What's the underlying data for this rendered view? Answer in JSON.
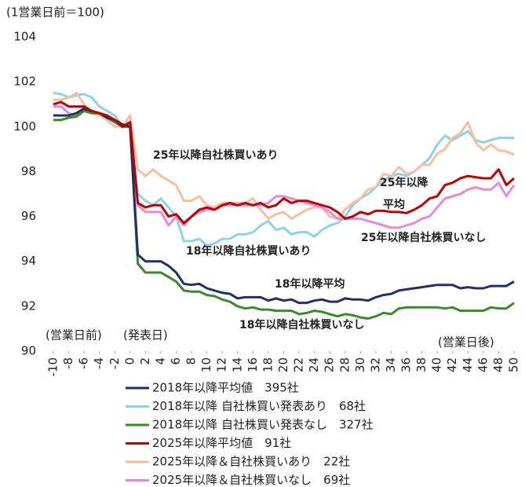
{
  "chart_data": {
    "type": "line",
    "title": "(1営業日前＝100)",
    "x": [
      -10,
      -9,
      -8,
      -7,
      -6,
      -5,
      -4,
      -3,
      -2,
      -1,
      0,
      1,
      2,
      3,
      4,
      5,
      6,
      7,
      8,
      9,
      10,
      11,
      12,
      13,
      14,
      15,
      16,
      17,
      18,
      19,
      20,
      21,
      22,
      23,
      24,
      25,
      26,
      27,
      28,
      29,
      30,
      31,
      32,
      33,
      34,
      35,
      36,
      37,
      38,
      39,
      40,
      41,
      42,
      43,
      44,
      45,
      46,
      47,
      48,
      49,
      50
    ],
    "xlim": [
      -10,
      50
    ],
    "xticks": [
      -10,
      -8,
      -6,
      -4,
      -2,
      0,
      2,
      4,
      6,
      8,
      10,
      12,
      14,
      16,
      18,
      20,
      22,
      24,
      26,
      28,
      30,
      32,
      34,
      36,
      38,
      40,
      42,
      44,
      46,
      48,
      50
    ],
    "ylim": [
      90,
      104
    ],
    "yticks": [
      90,
      92,
      94,
      96,
      98,
      100,
      102,
      104
    ],
    "grid": false,
    "legend": "bottom",
    "series": [
      {
        "name": "2018年以降平均値　395社",
        "color": "#1f2f6b",
        "values": [
          100.5,
          100.5,
          100.5,
          100.6,
          100.8,
          100.7,
          100.6,
          100.4,
          100.3,
          100.1,
          100.0,
          94.3,
          94.0,
          94.0,
          94.0,
          93.8,
          93.5,
          93.0,
          92.95,
          93.0,
          92.8,
          92.7,
          92.6,
          92.55,
          92.35,
          92.4,
          92.4,
          92.4,
          92.25,
          92.35,
          92.25,
          92.3,
          92.15,
          92.15,
          92.25,
          92.3,
          92.2,
          92.2,
          92.35,
          92.3,
          92.3,
          92.25,
          92.4,
          92.5,
          92.55,
          92.7,
          92.75,
          92.8,
          92.85,
          92.9,
          92.95,
          92.95,
          92.95,
          92.8,
          92.85,
          92.8,
          92.8,
          92.9,
          92.9,
          92.9,
          93.1
        ]
      },
      {
        "name": "2018年以降 自社株買い発表あり　68社",
        "color": "#8fd0ec",
        "values": [
          101.5,
          101.45,
          101.3,
          101.4,
          101.45,
          101.3,
          100.9,
          100.7,
          100.5,
          100.0,
          100.0,
          97.0,
          96.7,
          96.5,
          96.8,
          96.4,
          96.0,
          94.9,
          94.9,
          95.0,
          94.7,
          94.8,
          95.0,
          95.0,
          95.2,
          95.2,
          95.3,
          95.6,
          95.8,
          95.4,
          95.5,
          95.2,
          95.3,
          95.3,
          95.1,
          95.4,
          95.6,
          95.7,
          96.0,
          96.5,
          96.8,
          97.0,
          97.3,
          97.6,
          97.8,
          97.9,
          97.8,
          98.0,
          98.3,
          98.6,
          99.2,
          99.6,
          99.4,
          99.6,
          99.8,
          99.4,
          99.3,
          99.4,
          99.5,
          99.5,
          99.5
        ]
      },
      {
        "name": "2018年以降 自社株買い発表なし　327社",
        "color": "#3a8a2a",
        "values": [
          100.3,
          100.3,
          100.4,
          100.45,
          100.7,
          100.6,
          100.6,
          100.4,
          100.2,
          100.0,
          100.0,
          93.9,
          93.5,
          93.5,
          93.5,
          93.3,
          93.1,
          92.7,
          92.65,
          92.65,
          92.5,
          92.45,
          92.3,
          92.2,
          92.0,
          91.9,
          91.95,
          91.85,
          91.85,
          91.8,
          91.8,
          91.8,
          91.65,
          91.7,
          91.8,
          91.75,
          91.65,
          91.55,
          91.65,
          91.6,
          91.5,
          91.45,
          91.55,
          91.7,
          91.65,
          91.9,
          91.95,
          91.95,
          91.95,
          91.95,
          91.95,
          91.9,
          91.95,
          91.8,
          91.8,
          91.8,
          91.8,
          91.95,
          91.9,
          91.9,
          92.15
        ]
      },
      {
        "name": "2025年以降平均値　91社",
        "color": "#c00000",
        "values": [
          101.0,
          101.1,
          100.9,
          100.9,
          100.9,
          100.7,
          100.6,
          100.5,
          100.3,
          100.0,
          100.2,
          96.6,
          96.4,
          96.5,
          96.5,
          96.0,
          96.1,
          95.7,
          96.0,
          96.3,
          96.4,
          96.3,
          96.5,
          96.6,
          96.5,
          96.6,
          96.5,
          96.6,
          96.4,
          96.5,
          96.8,
          96.6,
          96.7,
          96.7,
          96.6,
          96.5,
          96.4,
          96.2,
          95.9,
          96.0,
          96.2,
          96.1,
          96.25,
          96.25,
          96.2,
          96.2,
          96.15,
          96.3,
          96.5,
          96.8,
          96.9,
          97.4,
          97.5,
          97.7,
          97.8,
          97.75,
          97.7,
          97.7,
          98.1,
          97.4,
          97.7
        ]
      },
      {
        "name": "2025年以降＆自社株買いあり　22社",
        "color": "#f6c0a0",
        "values": [
          101.2,
          101.2,
          101.3,
          101.5,
          101.0,
          100.6,
          100.5,
          100.3,
          100.0,
          100.0,
          100.5,
          98.1,
          97.8,
          98.1,
          97.8,
          97.6,
          97.4,
          96.7,
          96.7,
          96.9,
          96.5,
          96.4,
          96.6,
          96.6,
          96.6,
          96.6,
          96.8,
          96.3,
          95.9,
          96.1,
          96.2,
          95.9,
          96.1,
          96.3,
          96.4,
          96.4,
          96.0,
          95.9,
          96.3,
          96.6,
          96.8,
          97.2,
          97.3,
          97.9,
          97.8,
          98.2,
          97.9,
          98.0,
          98.3,
          98.3,
          98.8,
          99.0,
          99.5,
          99.7,
          100.2,
          99.3,
          98.95,
          99.2,
          98.95,
          98.9,
          98.75
        ]
      },
      {
        "name": "2025年以降＆自社株買いなし　69社",
        "color": "#e78ad6",
        "values": [
          100.9,
          100.9,
          100.6,
          100.5,
          100.9,
          100.6,
          100.6,
          100.4,
          100.3,
          100.0,
          100.0,
          96.5,
          96.2,
          96.2,
          96.2,
          95.6,
          96.0,
          95.6,
          96.0,
          96.2,
          96.3,
          96.3,
          96.5,
          96.5,
          96.5,
          96.5,
          96.5,
          96.5,
          96.6,
          96.9,
          96.9,
          96.8,
          96.7,
          96.6,
          96.5,
          96.4,
          96.2,
          95.9,
          95.9,
          95.9,
          95.9,
          95.8,
          95.7,
          95.6,
          95.5,
          95.5,
          95.6,
          95.7,
          95.9,
          96.0,
          96.4,
          96.8,
          96.9,
          97.0,
          97.2,
          97.3,
          97.2,
          97.2,
          97.5,
          96.9,
          97.4
        ]
      }
    ],
    "annotations": [
      {
        "text": "25年以降自社株買いあり",
        "color": "#f4b183"
      },
      {
        "text": "18年以降自社株買いあり",
        "color": "#5bbbe4"
      },
      {
        "text": "18年以降平均",
        "color": "#000000"
      },
      {
        "text": "18年以降自社株買いなし",
        "color": "#3a8a2a"
      },
      {
        "text": "25年以降",
        "color": "#c00000"
      },
      {
        "text": "平均",
        "color": "#c00000"
      },
      {
        "text": "25年以降自社株買いなし",
        "color": "#e06ad0"
      },
      {
        "text": "(営業日前)",
        "color": "#000000"
      },
      {
        "text": "(発表日)",
        "color": "#000000"
      },
      {
        "text": "(営業日後)",
        "color": "#000000"
      }
    ]
  }
}
